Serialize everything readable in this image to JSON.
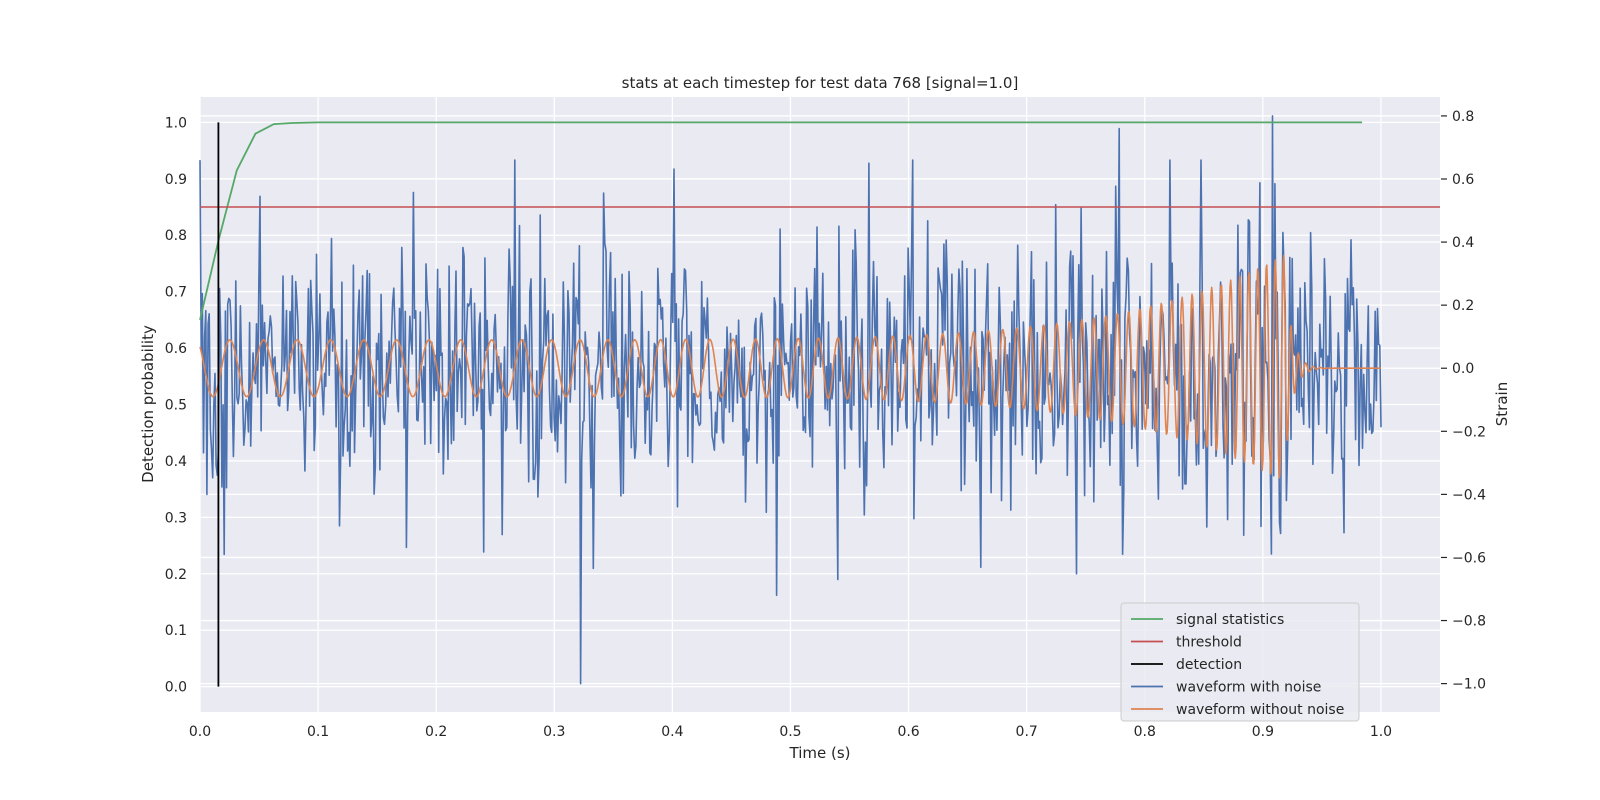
{
  "chart_data": {
    "type": "line",
    "title": "stats at each timestep for test data 768 [signal=1.0]",
    "xlabel": "Time (s)",
    "ylabel": "Detection probability",
    "y2label": "Strain",
    "xlim": [
      0.0,
      1.05
    ],
    "ylim": [
      -0.045,
      1.045
    ],
    "y2lim": [
      -1.09,
      0.86
    ],
    "xticks": [
      "0.0",
      "0.1",
      "0.2",
      "0.3",
      "0.4",
      "0.5",
      "0.6",
      "0.7",
      "0.8",
      "0.9",
      "1.0"
    ],
    "yticks": [
      "0.0",
      "0.1",
      "0.2",
      "0.3",
      "0.4",
      "0.5",
      "0.6",
      "0.7",
      "0.8",
      "0.9",
      "1.0"
    ],
    "y2ticks": [
      "−1.0",
      "−0.8",
      "−0.6",
      "−0.4",
      "−0.2",
      "0.0",
      "0.2",
      "0.4",
      "0.6",
      "0.8"
    ],
    "grid": true,
    "legend_position": "lower-right",
    "colors": {
      "background": "#eaeaf2",
      "grid": "#ffffff",
      "signal_statistics": "#55a868",
      "threshold": "#c44e52",
      "detection": "#000000",
      "waveform_with_noise": "#4c72b0",
      "waveform_without_noise": "#dd8452"
    },
    "series": [
      {
        "name": "signal statistics",
        "axis": "left",
        "x": [
          0.0,
          0.0156,
          0.0312,
          0.0469,
          0.0625,
          0.078,
          0.1,
          0.2,
          0.4,
          0.6,
          0.8,
          0.984
        ],
        "y": [
          0.65,
          0.79,
          0.915,
          0.98,
          0.997,
          0.999,
          1.0,
          1.0,
          1.0,
          1.0,
          1.0,
          1.0
        ]
      },
      {
        "name": "threshold",
        "axis": "left",
        "x": [
          0.0,
          1.05
        ],
        "y": [
          0.85,
          0.85
        ]
      },
      {
        "name": "detection",
        "axis": "left",
        "x": [
          0.0156,
          0.0156
        ],
        "y": [
          0.0,
          1.0
        ]
      },
      {
        "name": "waveform with noise",
        "axis": "right",
        "x_range": [
          0.0,
          1.0
        ],
        "approx_amplitude": 0.38,
        "notable_points": [
          {
            "x": 0.322,
            "y": -1.0
          },
          {
            "x": 0.908,
            "y": 0.8
          },
          {
            "x": 0.778,
            "y": 0.76
          },
          {
            "x": 0.566,
            "y": 0.65
          },
          {
            "x": 0.488,
            "y": -0.72
          },
          {
            "x": 0.54,
            "y": -0.67
          }
        ]
      },
      {
        "name": "waveform without noise",
        "axis": "right",
        "x_range": [
          0.0,
          1.0
        ],
        "description_values": {
          "start_amplitude": 0.09,
          "merger_time": 0.918,
          "peak_amplitude": 0.36,
          "start_frequency_hz": 35,
          "end_frequency_hz": 140
        }
      }
    ],
    "legend": [
      "signal statistics",
      "threshold",
      "detection",
      "waveform with noise",
      "waveform without noise"
    ]
  }
}
